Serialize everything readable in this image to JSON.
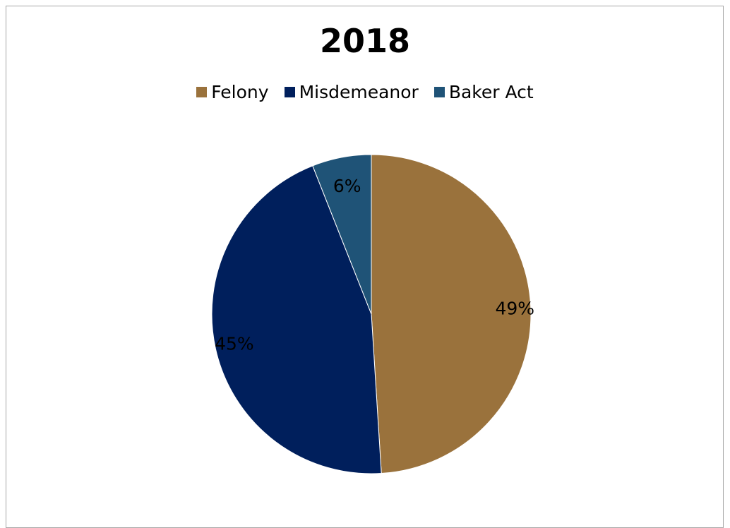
{
  "chart_data": {
    "type": "pie",
    "title": "2018",
    "legend_position": "top",
    "slices": [
      {
        "label": "Felony",
        "value": 49,
        "data_label": "49%",
        "color": "#9a723c"
      },
      {
        "label": "Misdemeanor",
        "value": 45,
        "data_label": "45%",
        "color": "#001f5c"
      },
      {
        "label": "Baker Act",
        "value": 6,
        "data_label": "6%",
        "color": "#1f5377"
      }
    ],
    "start_angle": "12 o'clock",
    "direction": "clockwise"
  }
}
